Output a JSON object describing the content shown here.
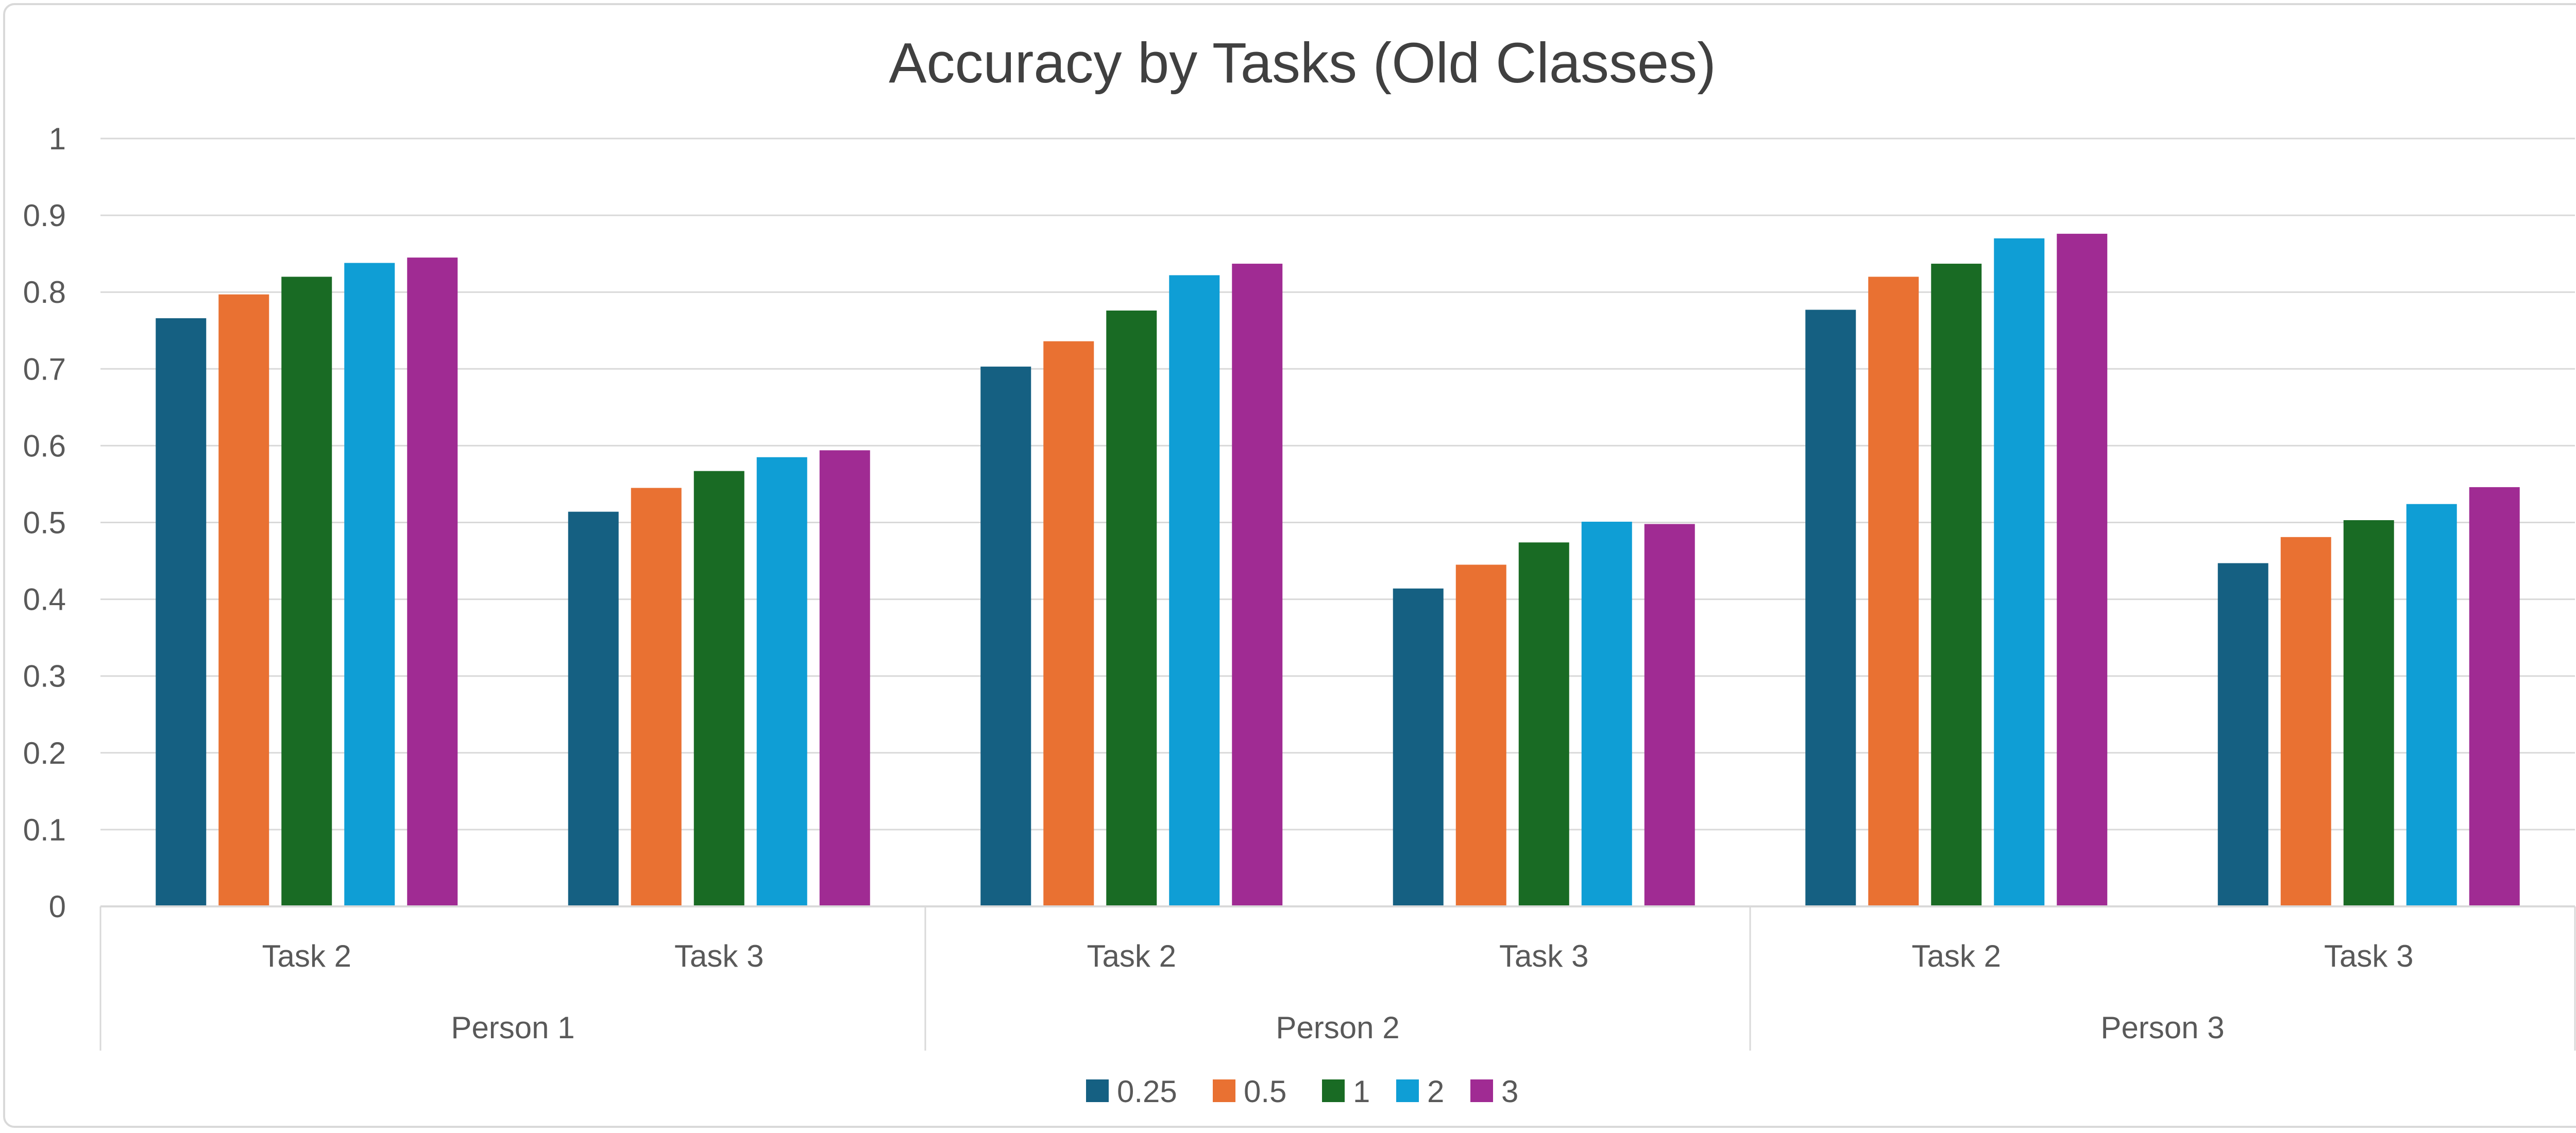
{
  "chart_data": {
    "type": "bar",
    "title": "Accuracy by Tasks (Old Classes)",
    "xlabel": "",
    "ylabel": "",
    "ylim": [
      0,
      1
    ],
    "yticks": [
      "0",
      "0.1",
      "0.2",
      "0.3",
      "0.4",
      "0.5",
      "0.6",
      "0.7",
      "0.8",
      "0.9",
      "1"
    ],
    "grid": true,
    "legend_position": "bottom",
    "groups": [
      {
        "label": "Person 1",
        "categories": [
          "Task 2",
          "Task 3"
        ]
      },
      {
        "label": "Person 2",
        "categories": [
          "Task 2",
          "Task 3"
        ]
      },
      {
        "label": "Person 3",
        "categories": [
          "Task 2",
          "Task 3"
        ]
      }
    ],
    "categories": [
      "Task 2",
      "Task 3",
      "Task 2",
      "Task 3",
      "Task 2",
      "Task 3"
    ],
    "series": [
      {
        "name": "0.25",
        "color": "#156082",
        "values": [
          0.766,
          0.514,
          0.703,
          0.414,
          0.777,
          0.447
        ]
      },
      {
        "name": "0.5",
        "color": "#e97132",
        "values": [
          0.797,
          0.545,
          0.736,
          0.445,
          0.82,
          0.481
        ]
      },
      {
        "name": "1",
        "color": "#196b24",
        "values": [
          0.82,
          0.567,
          0.776,
          0.474,
          0.837,
          0.503
        ]
      },
      {
        "name": "2",
        "color": "#0f9ed5",
        "values": [
          0.838,
          0.585,
          0.822,
          0.501,
          0.87,
          0.524
        ]
      },
      {
        "name": "3",
        "color": "#a02b93",
        "values": [
          0.845,
          0.594,
          0.837,
          0.498,
          0.876,
          0.546
        ]
      }
    ]
  }
}
